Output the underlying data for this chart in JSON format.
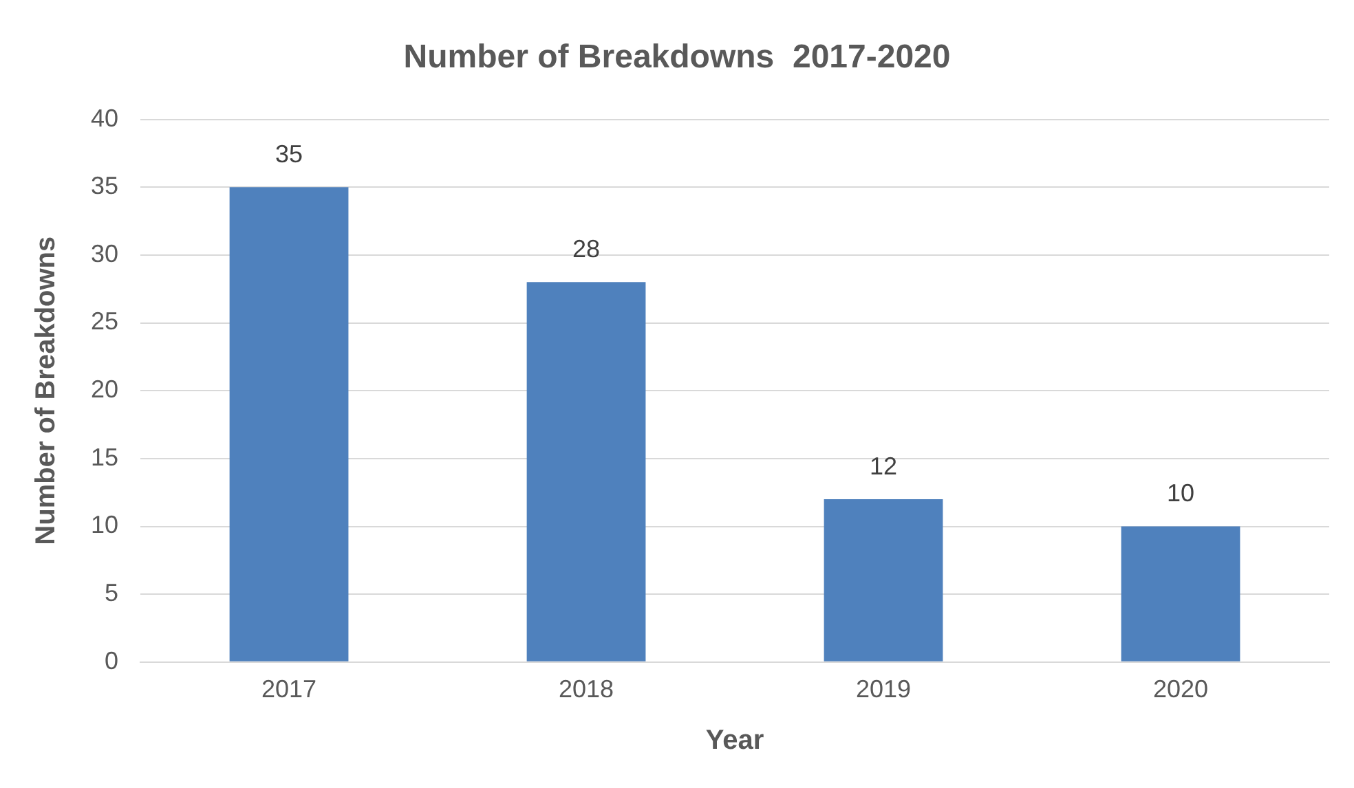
{
  "chart_data": {
    "type": "bar",
    "title": "Number of Breakdowns  2017-2020",
    "xlabel": "Year",
    "ylabel": "Number of Breakdowns",
    "categories": [
      "2017",
      "2018",
      "2019",
      "2020"
    ],
    "values": [
      35,
      28,
      12,
      10
    ],
    "color": "#4f81bd",
    "ylim": [
      0,
      40
    ],
    "yticks": [
      0,
      5,
      10,
      15,
      20,
      25,
      30,
      35,
      40
    ],
    "grid": "y",
    "data_labels": true,
    "legend": false
  }
}
